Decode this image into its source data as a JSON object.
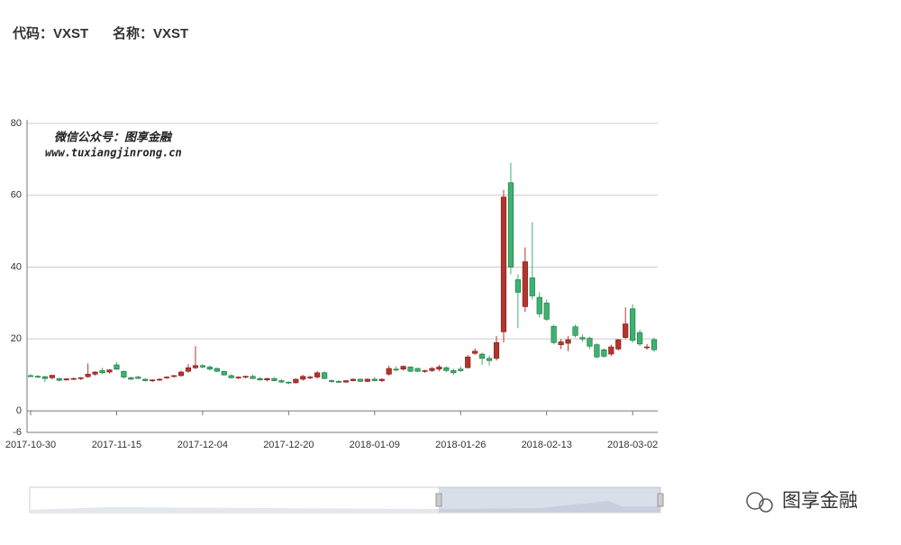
{
  "header": {
    "code": "代码：VXST",
    "name": "名称：VXST"
  },
  "watermark": {
    "line1": "微信公众号：图享金融",
    "line2": "www.tuxiangjinrong.cn"
  },
  "logo": "图享金融",
  "chart_data": {
    "type": "candlestick",
    "categories": [
      "2017-10-30",
      null,
      null,
      null,
      null,
      null,
      null,
      null,
      null,
      null,
      null,
      null,
      "2017-11-15",
      null,
      null,
      null,
      null,
      null,
      null,
      null,
      null,
      null,
      null,
      null,
      "2017-12-04",
      null,
      null,
      null,
      null,
      null,
      null,
      null,
      null,
      null,
      null,
      null,
      "2017-12-20",
      null,
      null,
      null,
      null,
      null,
      null,
      null,
      null,
      null,
      null,
      null,
      "2018-01-09",
      null,
      null,
      null,
      null,
      null,
      null,
      null,
      null,
      null,
      null,
      null,
      "2018-01-26",
      null,
      null,
      null,
      null,
      null,
      null,
      null,
      null,
      null,
      null,
      null,
      "2018-02-13",
      null,
      null,
      null,
      null,
      null,
      null,
      null,
      null,
      null,
      null,
      null,
      "2018-03-02",
      null,
      null,
      null
    ],
    "open": [
      9.8,
      9.6,
      9.5,
      9.2,
      9.0,
      8.6,
      8.9,
      9.0,
      9.5,
      10.2,
      11.2,
      10.8,
      12.8,
      11.0,
      9.2,
      9.4,
      8.8,
      8.4,
      8.6,
      9.2,
      9.6,
      9.8,
      11.0,
      12.0,
      12.6,
      12.2,
      11.8,
      11.0,
      9.8,
      9.2,
      9.4,
      9.6,
      9.0,
      8.6,
      9.0,
      8.4,
      8.0,
      7.8,
      8.8,
      9.2,
      9.4,
      10.6,
      8.4,
      8.2,
      8.0,
      8.4,
      8.8,
      8.2,
      8.8,
      8.4,
      10.2,
      11.6,
      11.6,
      12.2,
      11.8,
      11.0,
      11.2,
      11.6,
      12.0,
      11.2,
      11.6,
      12.0,
      16.0,
      15.8,
      14.6,
      14.6,
      22.0,
      63.5,
      36.5,
      29.0,
      37.0,
      31.6,
      30.0,
      23.5,
      18.4,
      18.8,
      23.4,
      20.4,
      20.2,
      18.4,
      17.0,
      15.8,
      17.2,
      20.4,
      28.4,
      21.8,
      17.6,
      19.8
    ],
    "high": [
      10.2,
      9.9,
      9.8,
      10.0,
      9.2,
      9.1,
      9.3,
      9.4,
      13.2,
      11.0,
      12.0,
      11.6,
      13.6,
      11.2,
      9.5,
      9.8,
      9.0,
      8.8,
      9.0,
      9.6,
      10.0,
      11.2,
      13.0,
      18.0,
      13.0,
      12.6,
      12.0,
      11.2,
      10.2,
      9.6,
      9.8,
      10.0,
      9.4,
      9.2,
      9.4,
      8.8,
      8.2,
      9.0,
      10.0,
      9.8,
      11.0,
      11.0,
      8.8,
      8.6,
      8.6,
      9.0,
      9.0,
      9.0,
      9.4,
      9.0,
      12.6,
      12.4,
      12.6,
      12.4,
      12.0,
      11.4,
      12.2,
      12.8,
      12.4,
      11.8,
      12.4,
      15.6,
      17.4,
      16.2,
      15.4,
      20.8,
      61.5,
      69.0,
      38.0,
      45.5,
      52.5,
      33.0,
      31.0,
      24.0,
      20.0,
      20.8,
      24.0,
      21.2,
      20.6,
      18.8,
      17.4,
      18.4,
      20.0,
      28.8,
      29.6,
      22.6,
      18.6,
      20.4
    ],
    "low": [
      9.4,
      9.2,
      8.0,
      8.8,
      8.2,
      8.4,
      8.6,
      8.6,
      9.2,
      9.8,
      10.2,
      10.4,
      11.4,
      9.0,
      8.6,
      8.9,
      8.2,
      8.0,
      8.3,
      8.9,
      9.2,
      9.5,
      10.6,
      11.6,
      11.8,
      11.2,
      10.8,
      9.8,
      9.0,
      8.8,
      9.0,
      8.8,
      8.4,
      8.2,
      8.2,
      7.8,
      7.4,
      7.6,
      8.4,
      8.8,
      9.0,
      8.8,
      7.8,
      7.8,
      7.8,
      8.2,
      8.0,
      8.0,
      8.2,
      8.0,
      9.8,
      11.0,
      11.2,
      10.8,
      10.8,
      10.6,
      10.8,
      11.0,
      10.8,
      10.0,
      10.8,
      11.8,
      15.6,
      12.8,
      12.6,
      14.0,
      19.0,
      38.0,
      23.0,
      27.5,
      31.0,
      26.0,
      25.0,
      18.5,
      17.2,
      16.6,
      20.4,
      19.2,
      17.2,
      14.6,
      14.8,
      15.2,
      16.8,
      20.0,
      19.0,
      18.0,
      17.0,
      16.4
    ],
    "close": [
      9.6,
      9.5,
      9.0,
      9.9,
      8.5,
      8.9,
      9.0,
      9.2,
      10.2,
      10.8,
      10.6,
      11.4,
      11.6,
      9.4,
      8.8,
      9.0,
      8.4,
      8.6,
      8.8,
      9.4,
      9.8,
      10.8,
      12.0,
      12.6,
      12.2,
      11.6,
      11.0,
      10.0,
      9.2,
      9.4,
      9.6,
      9.0,
      8.6,
      9.0,
      8.4,
      8.0,
      7.8,
      8.8,
      9.6,
      9.4,
      10.6,
      9.0,
      8.2,
      8.0,
      8.4,
      8.8,
      8.2,
      8.8,
      8.4,
      8.8,
      11.8,
      11.4,
      12.4,
      11.0,
      11.0,
      11.2,
      11.8,
      12.2,
      11.2,
      10.6,
      11.2,
      15.0,
      16.6,
      14.6,
      14.0,
      19.0,
      59.5,
      40.0,
      33.0,
      41.5,
      32.0,
      27.0,
      25.5,
      19.0,
      19.2,
      19.8,
      21.0,
      20.0,
      18.0,
      15.0,
      15.2,
      17.8,
      19.8,
      24.2,
      19.6,
      18.6,
      17.8,
      17.0
    ],
    "up_color": "#b3352d",
    "down_color": "#3cb371",
    "ylim": [
      -6,
      81
    ],
    "yticks": [
      -6,
      0,
      20,
      40,
      60,
      80
    ],
    "grid": true
  }
}
